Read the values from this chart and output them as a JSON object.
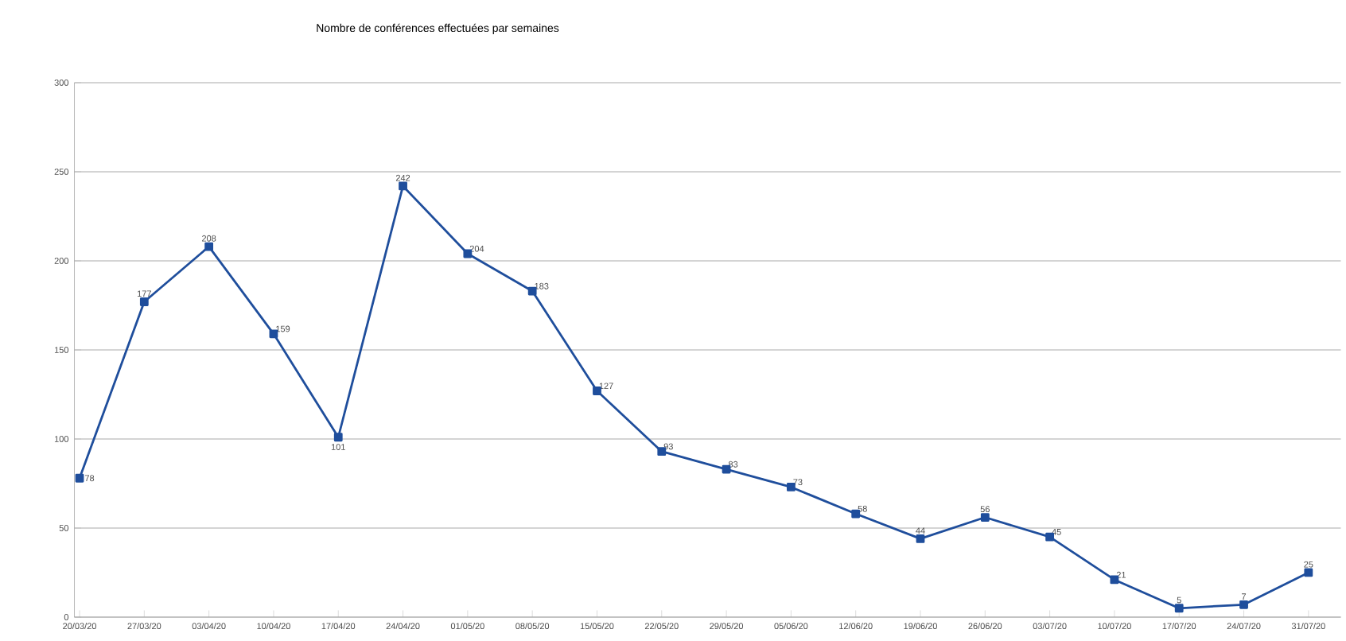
{
  "chart_data": {
    "type": "line",
    "title": "Nombre de conférences effectuées par semaines",
    "categories": [
      "20/03/20",
      "27/03/20",
      "03/04/20",
      "10/04/20",
      "17/04/20",
      "24/04/20",
      "01/05/20",
      "08/05/20",
      "15/05/20",
      "22/05/20",
      "29/05/20",
      "05/06/20",
      "12/06/20",
      "19/06/20",
      "26/06/20",
      "03/07/20",
      "10/07/20",
      "17/07/20",
      "24/07/20",
      "31/07/20"
    ],
    "series": [
      {
        "color": "#1f4e9c",
        "values": [
          78,
          177,
          208,
          159,
          101,
          242,
          204,
          183,
          127,
          93,
          83,
          73,
          58,
          44,
          56,
          45,
          21,
          5,
          7,
          25
        ]
      }
    ],
    "ylim": [
      0,
      300
    ],
    "yticks": [
      0,
      50,
      100,
      150,
      200,
      250,
      300
    ],
    "grid": "y",
    "marker": "square",
    "line_style": "solid",
    "data_labels": true
  }
}
